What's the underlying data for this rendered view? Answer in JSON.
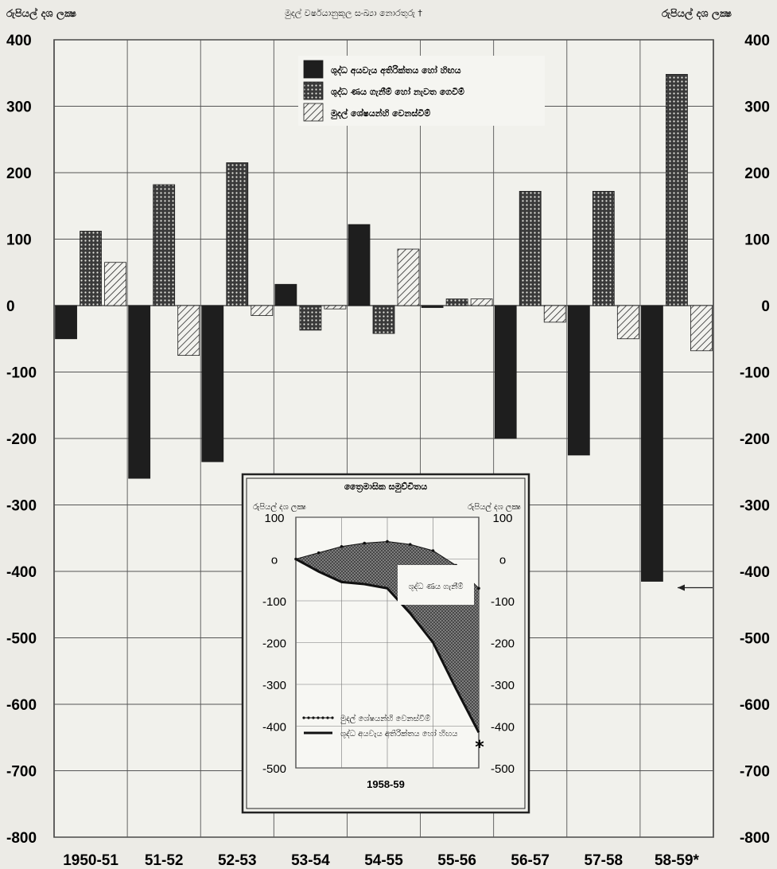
{
  "header": {
    "left_unit": "රුපියල් දශ ලක්‍ෂ",
    "right_unit": "රුපියල් දශ ලක්‍ෂ",
    "note": "මුදල් වර්ෂයානුකූල සංඛ්‍යා නොරතුරු †"
  },
  "chart_data": [
    {
      "type": "bar",
      "title": "",
      "ylabel": "රුපියල් දශ ලක්‍ෂ",
      "ylim": [
        -800,
        400
      ],
      "yticks": [
        400,
        300,
        200,
        100,
        0,
        -100,
        -200,
        -300,
        -400,
        -500,
        -600,
        -700,
        -800
      ],
      "ytick_labels": [
        "400",
        "300",
        "200",
        "100",
        "0",
        "-100",
        "-200",
        "-300",
        "-400",
        "-500",
        "-600",
        "-700",
        "-800"
      ],
      "grid": true,
      "legend_position": "top-center",
      "categories": [
        "1950-51",
        "51-52",
        "52-53",
        "53-54",
        "54-55",
        "55-56",
        "56-57",
        "57-58",
        "58-59*"
      ],
      "series": [
        {
          "name": "ශුද්ධ අයවැය අතිරික්තය හෝ හිඟය",
          "pattern": "solid",
          "color": "#1e1e1e",
          "values": [
            -50,
            -260,
            -235,
            32,
            122,
            -3,
            -200,
            -225,
            -415
          ]
        },
        {
          "name": "ශුද්ධ ණය ගැනීම් හෝ නැවත ගෙවීම්",
          "pattern": "crosshatch",
          "color": "#1e1e1e",
          "values": [
            112,
            182,
            215,
            -37,
            -42,
            10,
            172,
            172,
            348
          ]
        },
        {
          "name": "මුදල් ශේෂයන්හි වෙනස්වීම්",
          "pattern": "diagonal",
          "color": "#1e1e1e",
          "values": [
            65,
            -75,
            -15,
            -5,
            85,
            10,
            -25,
            -50,
            -68
          ]
        }
      ],
      "annotations": [
        "*"
      ]
    },
    {
      "type": "line",
      "title": "ත්‍රෛමාසික සමුච්චිතය",
      "ylabel_left": "රුපියල් දශ ලක්‍ෂ",
      "ylabel_right": "රුපියල් දශ ලක්‍ෂ",
      "xlabel": "1958-59",
      "ylim": [
        -500,
        100
      ],
      "yticks": [
        100,
        0,
        -100,
        -200,
        -300,
        -400,
        -500
      ],
      "ytick_labels": [
        "100",
        "o",
        "-100",
        "-200",
        "-300",
        "-400",
        "-500"
      ],
      "x": [
        0,
        0.5,
        1,
        1.5,
        2,
        2.5,
        3,
        3.5,
        4
      ],
      "series": [
        {
          "name": "මුදල් ශේෂයන්හි වෙනස්වීම්",
          "style": "dotted-line",
          "values": [
            0,
            15,
            30,
            38,
            42,
            35,
            20,
            -15,
            -70
          ]
        },
        {
          "name": "ශුද්ධ අයවැය අතිරික්තය හෝ හිඟය",
          "style": "solid-line",
          "values": [
            0,
            -30,
            -55,
            -60,
            -70,
            -130,
            -200,
            -310,
            -415
          ]
        }
      ],
      "shaded_label": "ශුද්ධ ණය ගැනීම්",
      "annotations": [
        "*"
      ]
    }
  ]
}
